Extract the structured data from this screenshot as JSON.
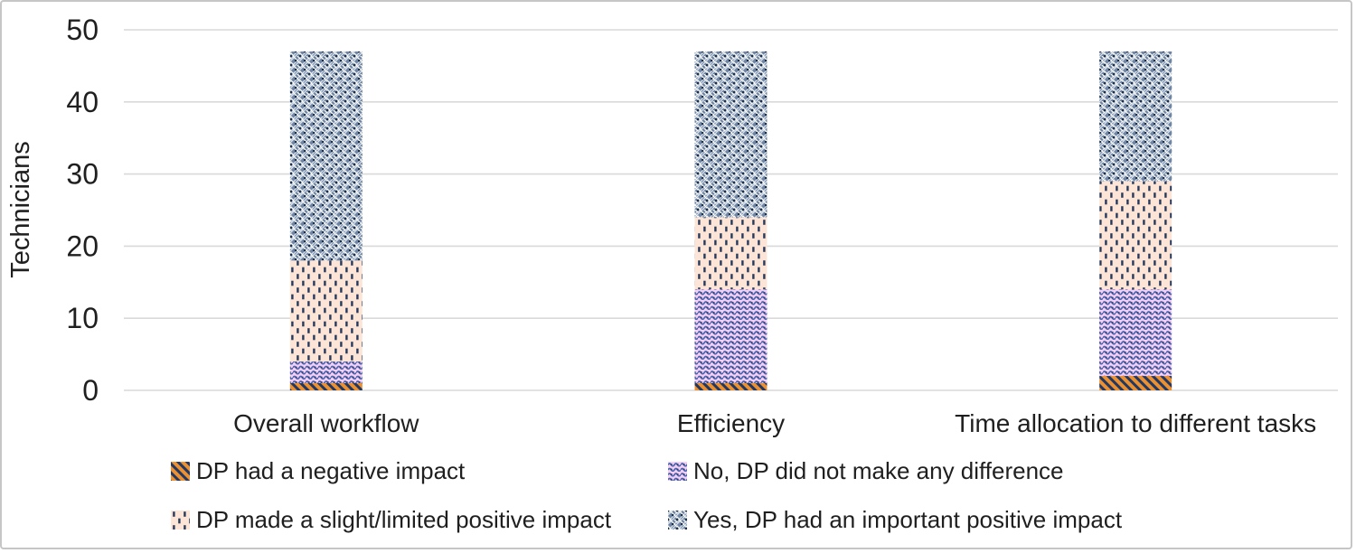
{
  "figure": {
    "background_color": "#ffffff",
    "border_color": "#c6c6c6"
  },
  "axis_style": {
    "gridline_color": "#d9d9d9",
    "text_color": "#1f1f1f"
  },
  "chart_data": {
    "type": "bar",
    "stacked": true,
    "orientation": "vertical",
    "title": "",
    "xlabel": "",
    "ylabel": "Technicians",
    "ylim": [
      0,
      50
    ],
    "yticks": [
      0,
      10,
      20,
      30,
      40,
      50
    ],
    "grid": "horizontal",
    "legend_position": "bottom",
    "categories": [
      "Overall workflow",
      "Efficiency",
      "Time allocation to different tasks"
    ],
    "series": [
      {
        "name": "DP had a negative impact",
        "values": [
          1,
          1,
          2
        ],
        "pattern": "diagonal-stripes",
        "background": "#ed9030",
        "foreground": "#203864"
      },
      {
        "name": "No, DP did not make any difference",
        "values": [
          3,
          13,
          12
        ],
        "pattern": "horizontal-waves",
        "background": "#f7cef3",
        "foreground": "#4668b3"
      },
      {
        "name": "DP made a slight/limited positive impact",
        "values": [
          14,
          10,
          15
        ],
        "pattern": "vertical-dashes",
        "background": "#fce5d6",
        "foreground": "#26395c"
      },
      {
        "name": "Yes, DP had an important positive impact",
        "values": [
          29,
          23,
          18
        ],
        "pattern": "diamond-weave",
        "background": "#6f85a3",
        "foreground": "#ffffff"
      }
    ]
  }
}
